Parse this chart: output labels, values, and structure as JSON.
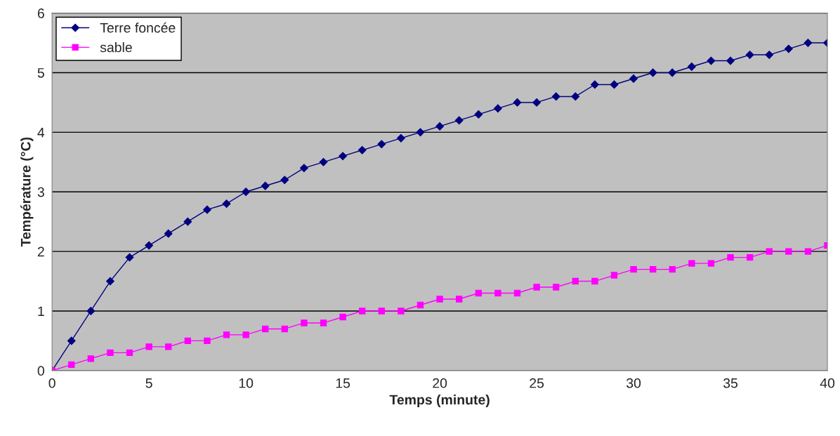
{
  "chart_data": {
    "type": "line",
    "xlabel": "Temps (minute)",
    "ylabel": "Température (°C)",
    "x": [
      0,
      1,
      2,
      3,
      4,
      5,
      6,
      7,
      8,
      9,
      10,
      11,
      12,
      13,
      14,
      15,
      16,
      17,
      18,
      19,
      20,
      21,
      22,
      23,
      24,
      25,
      26,
      27,
      28,
      29,
      30,
      31,
      32,
      33,
      34,
      35,
      36,
      37,
      38,
      39,
      40
    ],
    "series": [
      {
        "name": "Terre foncée",
        "color": "#000080",
        "marker": "diamond",
        "values": [
          0,
          0.5,
          1.0,
          1.5,
          1.9,
          2.1,
          2.3,
          2.5,
          2.7,
          2.8,
          3.0,
          3.1,
          3.2,
          3.4,
          3.5,
          3.6,
          3.7,
          3.8,
          3.9,
          4.0,
          4.1,
          4.2,
          4.3,
          4.4,
          4.5,
          4.5,
          4.6,
          4.6,
          4.8,
          4.8,
          4.9,
          5.0,
          5.0,
          5.1,
          5.2,
          5.2,
          5.3,
          5.3,
          5.4,
          5.5,
          5.5
        ]
      },
      {
        "name": "sable",
        "color": "#ff00ff",
        "marker": "square",
        "values": [
          0,
          0.1,
          0.2,
          0.3,
          0.3,
          0.4,
          0.4,
          0.5,
          0.5,
          0.6,
          0.6,
          0.7,
          0.7,
          0.8,
          0.8,
          0.9,
          1.0,
          1.0,
          1.0,
          1.1,
          1.2,
          1.2,
          1.3,
          1.3,
          1.3,
          1.4,
          1.4,
          1.5,
          1.5,
          1.6,
          1.7,
          1.7,
          1.7,
          1.8,
          1.8,
          1.9,
          1.9,
          2.0,
          2.0,
          2.0,
          2.1
        ]
      }
    ],
    "xlim": [
      0,
      40
    ],
    "xticks": [
      0,
      5,
      10,
      15,
      20,
      25,
      30,
      35,
      40
    ],
    "ylim": [
      0,
      6
    ],
    "yticks": [
      0,
      1,
      2,
      3,
      4,
      5,
      6
    ],
    "grid": "y",
    "legend": "top left",
    "line_style": "solid"
  }
}
